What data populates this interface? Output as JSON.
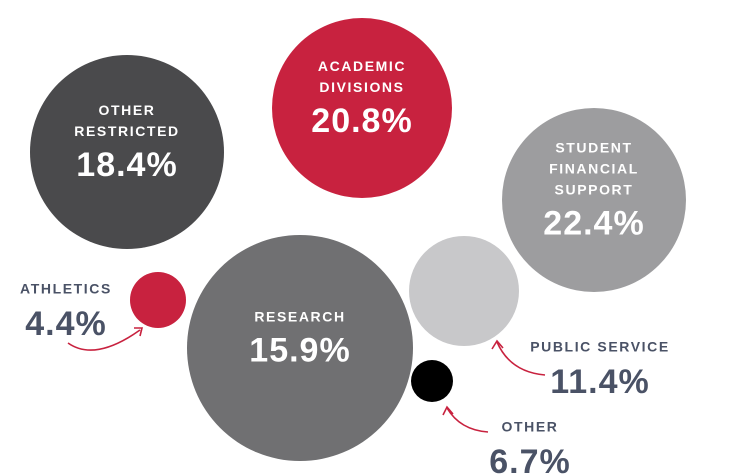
{
  "chart_data": {
    "type": "bubble",
    "categories": [
      "OTHER RESTRICTED",
      "ACADEMIC DIVISIONS",
      "STUDENT FINANCIAL SUPPORT",
      "ATHLETICS",
      "RESEARCH",
      "PUBLIC SERVICE",
      "OTHER"
    ],
    "values": [
      18.4,
      20.8,
      22.4,
      4.4,
      15.9,
      11.4,
      6.7
    ],
    "value_labels": [
      "18.4%",
      "20.8%",
      "22.4%",
      "4.4%",
      "15.9%",
      "11.4%",
      "6.7%"
    ],
    "colors": [
      "#4a4a4c",
      "#c8223f",
      "#9d9d9f",
      "#c8223f",
      "#707072",
      "#c8c8ca",
      "#000000"
    ]
  }
}
